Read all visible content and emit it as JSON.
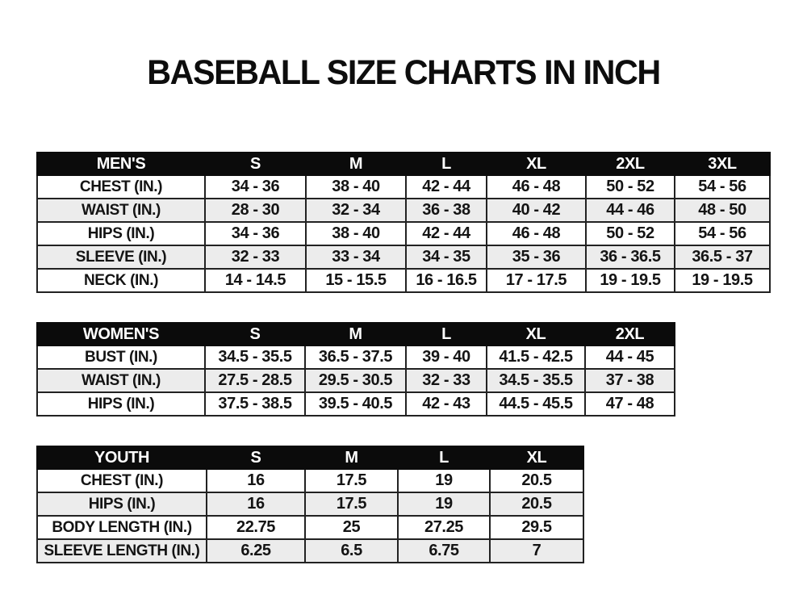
{
  "title": "BASEBALL SIZE CHARTS IN INCH",
  "colors": {
    "header_bg": "#0b0b0b",
    "header_text": "#ffffff",
    "row_alt_bg": "#ececec",
    "border": "#222222",
    "text": "#141414",
    "page_bg": "#ffffff"
  },
  "tables": [
    {
      "name": "mens",
      "header": [
        "MEN'S",
        "S",
        "M",
        "L",
        "XL",
        "2XL",
        "3XL"
      ],
      "rows": [
        [
          "CHEST (IN.)",
          "34 - 36",
          "38 - 40",
          "42 - 44",
          "46 - 48",
          "50 - 52",
          "54 - 56"
        ],
        [
          "WAIST (IN.)",
          "28 - 30",
          "32 - 34",
          "36 - 38",
          "40 - 42",
          "44 - 46",
          "48 - 50"
        ],
        [
          "HIPS (IN.)",
          "34 - 36",
          "38 - 40",
          "42 - 44",
          "46 - 48",
          "50 - 52",
          "54 - 56"
        ],
        [
          "SLEEVE (IN.)",
          "32 - 33",
          "33 - 34",
          "34 - 35",
          "35 - 36",
          "36 - 36.5",
          "36.5 - 37"
        ],
        [
          "NECK (IN.)",
          "14 - 14.5",
          "15 - 15.5",
          "16 - 16.5",
          "17 - 17.5",
          "19 - 19.5",
          "19 - 19.5"
        ]
      ]
    },
    {
      "name": "womens",
      "header": [
        "WOMEN'S",
        "S",
        "M",
        "L",
        "XL",
        "2XL"
      ],
      "rows": [
        [
          "BUST (IN.)",
          "34.5 - 35.5",
          "36.5 - 37.5",
          "39 - 40",
          "41.5 - 42.5",
          "44 - 45"
        ],
        [
          "WAIST (IN.)",
          "27.5 - 28.5",
          "29.5 - 30.5",
          "32 - 33",
          "34.5 - 35.5",
          "37 - 38"
        ],
        [
          "HIPS (IN.)",
          "37.5 - 38.5",
          "39.5 - 40.5",
          "42 - 43",
          "44.5 - 45.5",
          "47 - 48"
        ]
      ]
    },
    {
      "name": "youth",
      "header": [
        "YOUTH",
        "S",
        "M",
        "L",
        "XL"
      ],
      "rows": [
        [
          "CHEST (IN.)",
          "16",
          "17.5",
          "19",
          "20.5"
        ],
        [
          "HIPS (IN.)",
          "16",
          "17.5",
          "19",
          "20.5"
        ],
        [
          "BODY LENGTH (IN.)",
          "22.75",
          "25",
          "27.25",
          "29.5"
        ],
        [
          "SLEEVE LENGTH (IN.)",
          "6.25",
          "6.5",
          "6.75",
          "7"
        ]
      ]
    }
  ]
}
